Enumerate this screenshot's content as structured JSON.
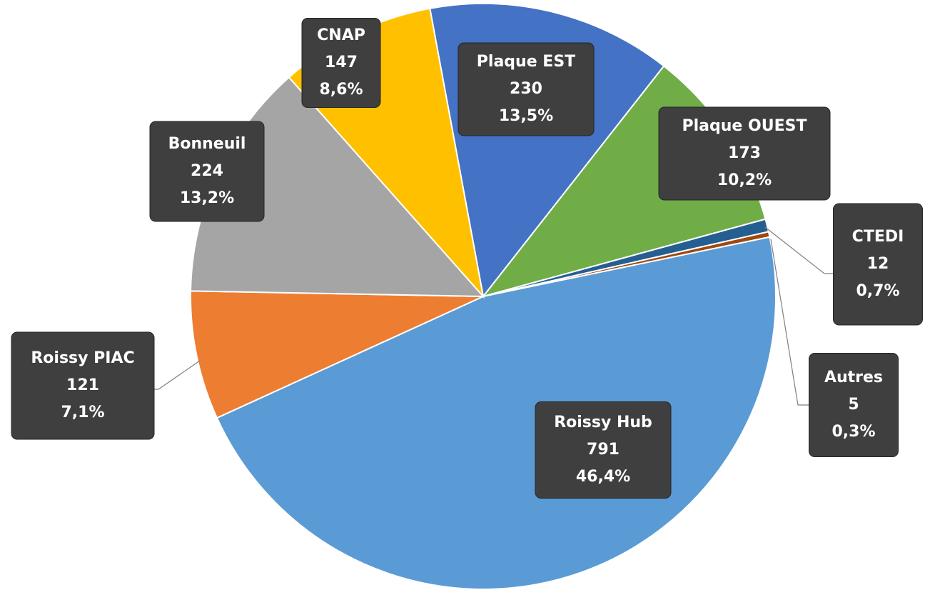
{
  "chart_data": {
    "type": "pie",
    "categories": [
      "Plaque EST",
      "Plaque OUEST",
      "CTEDI",
      "Autres",
      "Roissy Hub",
      "Roissy PIAC",
      "Bonneuil",
      "CNAP"
    ],
    "values": [
      230,
      173,
      12,
      5,
      791,
      121,
      224,
      147
    ],
    "percent_labels": [
      "13,5%",
      "10,2%",
      "0,7%",
      "0,3%",
      "46,4%",
      "7,1%",
      "13,2%",
      "8,6%"
    ],
    "colors": [
      "#4472c4",
      "#70ad47",
      "#255e91",
      "#9e480e",
      "#5b9bd5",
      "#ed7d31",
      "#a5a5a5",
      "#ffc000"
    ]
  }
}
